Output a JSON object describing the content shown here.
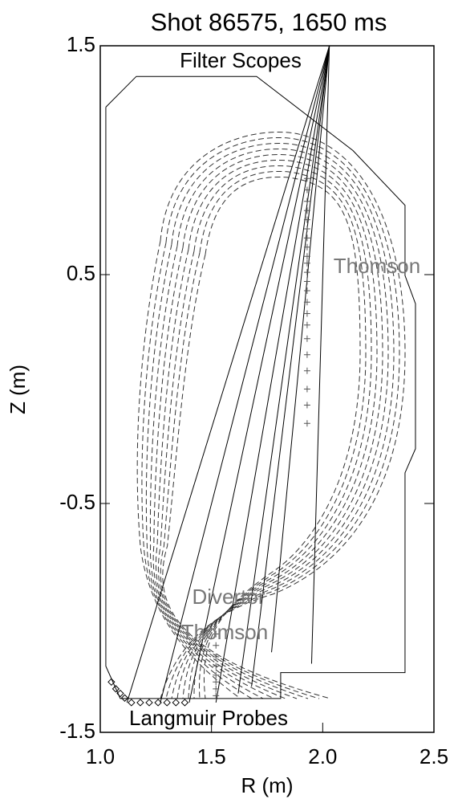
{
  "chart_data": {
    "type": "cross-section",
    "title": "Shot 86575, 1650 ms",
    "x_label": "R (m)",
    "y_label": "Z (m)",
    "xlim": [
      1.0,
      2.5
    ],
    "ylim": [
      -1.5,
      1.5
    ],
    "xticks": [
      {
        "value": 1.0,
        "label": "1.0"
      },
      1.5,
      {
        "value": 2.0,
        "label": "2.0"
      },
      2.5
    ],
    "yticks": [
      1.5,
      0.5,
      -0.5,
      -1.5
    ],
    "annotations": [
      "Filter Scopes",
      "Thomson",
      "Divertor",
      "Thomson",
      "Langmuir Probes"
    ],
    "vessel": {
      "x": [
        1.025,
        1.162,
        1.703,
        2.136,
        2.37,
        2.37,
        2.417,
        2.417,
        2.37,
        2.37,
        1.811,
        1.811,
        1.09,
        1.025,
        1.025
      ],
      "y": [
        1.232,
        1.366,
        1.366,
        1.042,
        0.803,
        0.496,
        0.373,
        -0.261,
        -0.366,
        -1.239,
        -1.239,
        -1.352,
        -1.352,
        -1.211,
        1.232
      ]
    },
    "chords": [
      {
        "x": [
          2.03,
          1.12
        ],
        "y": [
          1.5,
          -1.37
        ]
      },
      {
        "x": [
          2.03,
          1.27
        ],
        "y": [
          1.5,
          -1.37
        ]
      },
      {
        "x": [
          2.03,
          1.4
        ],
        "y": [
          1.5,
          -1.37
        ]
      },
      {
        "x": [
          2.03,
          1.52
        ],
        "y": [
          1.5,
          -1.37
        ]
      },
      {
        "x": [
          2.03,
          1.62
        ],
        "y": [
          1.5,
          -1.33
        ]
      },
      {
        "x": [
          2.03,
          1.68
        ],
        "y": [
          1.5,
          -1.3
        ]
      },
      {
        "x": [
          2.03,
          1.77
        ],
        "y": [
          1.5,
          -1.15
        ]
      },
      {
        "x": [
          2.03,
          1.95
        ],
        "y": [
          1.5,
          -1.2
        ]
      }
    ],
    "thomson_points": {
      "x": [
        1.93,
        1.93,
        1.93,
        1.93,
        1.93,
        1.93,
        1.93,
        1.93,
        1.93,
        1.93,
        1.93,
        1.93,
        1.93,
        1.93,
        1.93,
        1.93,
        1.93,
        1.93,
        1.93,
        1.93,
        1.93,
        1.93
      ],
      "y": [
        0.92,
        0.87,
        0.82,
        0.78,
        0.74,
        0.7,
        0.66,
        0.62,
        0.58,
        0.55,
        0.51,
        0.47,
        0.43,
        0.38,
        0.33,
        0.28,
        0.22,
        0.15,
        0.08,
        0.0,
        -0.07,
        -0.15
      ]
    },
    "divertor_thomson_points": {
      "x": [
        1.52,
        1.52,
        1.52,
        1.52,
        1.52,
        1.52,
        1.52,
        1.52
      ],
      "y": [
        -1.07,
        -1.12,
        -1.17,
        -1.21,
        -1.25,
        -1.28,
        -1.31,
        -1.34
      ]
    },
    "probe_points": {
      "x": [
        1.05,
        1.07,
        1.09,
        1.11,
        1.14,
        1.18,
        1.22,
        1.26,
        1.3,
        1.34,
        1.38
      ],
      "y": [
        -1.28,
        -1.31,
        -1.33,
        -1.35,
        -1.37,
        -1.37,
        -1.37,
        -1.37,
        -1.37,
        -1.37,
        -1.37
      ]
    }
  }
}
